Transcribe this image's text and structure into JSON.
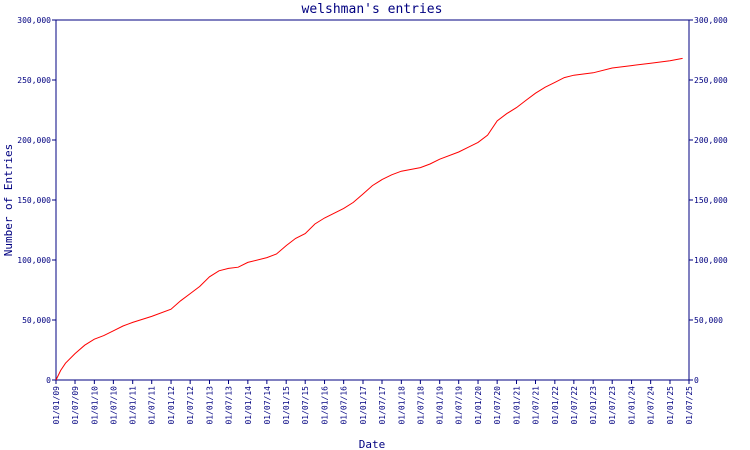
{
  "chart_data": {
    "type": "line",
    "title": "welshman's entries",
    "xlabel": "Date",
    "ylabel": "Number of Entries",
    "ylim": [
      0,
      300000
    ],
    "y_ticks": [
      0,
      50000,
      100000,
      150000,
      200000,
      250000,
      300000
    ],
    "y_tick_labels": [
      "0",
      "50,000",
      "100,000",
      "150,000",
      "200,000",
      "250,000",
      "300,000"
    ],
    "x_tick_labels": [
      "01/01/09",
      "01/07/09",
      "01/01/10",
      "01/07/10",
      "01/01/11",
      "01/07/11",
      "01/01/12",
      "01/07/12",
      "01/01/13",
      "01/07/13",
      "01/01/14",
      "01/07/14",
      "01/01/15",
      "01/07/15",
      "01/01/16",
      "01/07/16",
      "01/01/17",
      "01/07/17",
      "01/01/18",
      "01/07/18",
      "01/01/19",
      "01/07/19",
      "01/01/20",
      "01/07/20",
      "01/01/21",
      "01/07/21",
      "01/01/22",
      "01/07/22",
      "01/01/23",
      "01/07/23",
      "01/01/24",
      "01/07/24",
      "01/01/25",
      "01/07/25"
    ],
    "grid": false,
    "y_axis_right": true,
    "series_color": "#ff0000",
    "axis_color": "#000080",
    "x": [
      "2009-01-01",
      "2009-02-15",
      "2009-04-01",
      "2009-07-01",
      "2009-10-01",
      "2010-01-01",
      "2010-04-01",
      "2010-07-01",
      "2010-10-01",
      "2011-01-01",
      "2011-07-01",
      "2012-01-01",
      "2012-04-01",
      "2012-07-01",
      "2012-10-01",
      "2013-01-01",
      "2013-04-01",
      "2013-07-01",
      "2013-10-01",
      "2014-01-01",
      "2014-07-01",
      "2014-10-01",
      "2015-01-01",
      "2015-04-01",
      "2015-07-01",
      "2015-10-01",
      "2016-01-01",
      "2016-07-01",
      "2016-10-01",
      "2017-01-01",
      "2017-04-01",
      "2017-07-01",
      "2017-10-01",
      "2018-01-01",
      "2018-07-01",
      "2018-10-01",
      "2019-01-01",
      "2019-07-01",
      "2019-10-01",
      "2020-01-01",
      "2020-04-01",
      "2020-07-01",
      "2020-10-01",
      "2021-01-01",
      "2021-04-01",
      "2021-07-01",
      "2021-10-01",
      "2022-01-01",
      "2022-04-01",
      "2022-07-01",
      "2022-10-01",
      "2023-01-01",
      "2023-07-01",
      "2024-01-01",
      "2024-07-01",
      "2025-01-01",
      "2025-05-01"
    ],
    "y": [
      0,
      8000,
      14000,
      22000,
      29000,
      34000,
      37000,
      41000,
      45000,
      48000,
      53000,
      59000,
      66000,
      72000,
      78000,
      86000,
      91000,
      93000,
      94000,
      98000,
      102000,
      105000,
      112000,
      118000,
      122000,
      130000,
      135000,
      143000,
      148000,
      155000,
      162000,
      167000,
      171000,
      174000,
      177000,
      180000,
      184000,
      190000,
      194000,
      198000,
      204000,
      216000,
      222000,
      227000,
      233000,
      239000,
      244000,
      248000,
      252000,
      254000,
      255000,
      256000,
      260000,
      262000,
      264000,
      266000,
      268000
    ]
  }
}
